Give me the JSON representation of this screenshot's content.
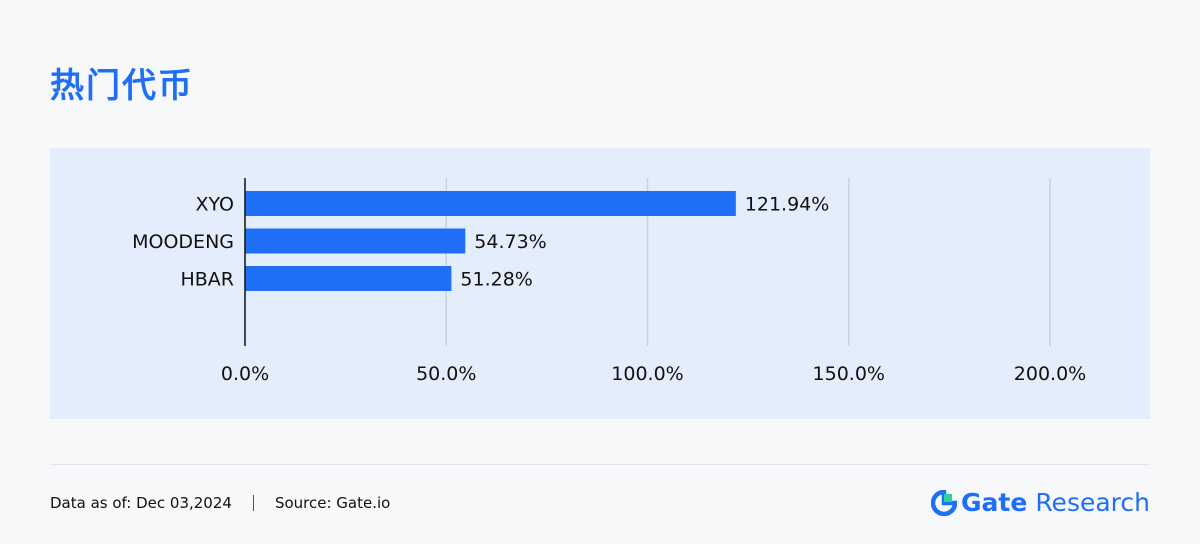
{
  "title": "热门代币",
  "footer": {
    "data_as_of": "Data as of: Dec 03,2024",
    "source": "Source: Gate.io"
  },
  "brand": {
    "name": "Gate",
    "suffix": "Research",
    "color": "#1e6ff5"
  },
  "chart_data": {
    "type": "bar",
    "orientation": "horizontal",
    "categories": [
      "XYO",
      "MOODENG",
      "HBAR"
    ],
    "values": [
      121.94,
      54.73,
      51.28
    ],
    "value_labels": [
      "121.94%",
      "54.73%",
      "51.28%"
    ],
    "xlim": [
      0,
      200
    ],
    "xticks": [
      0,
      50,
      100,
      150,
      200
    ],
    "xtick_labels": [
      "0.0%",
      "50.0%",
      "100.0%",
      "150.0%",
      "200.0%"
    ],
    "grid": true,
    "bar_color": "#1e6ff5",
    "background_color": "#e3edfb"
  }
}
